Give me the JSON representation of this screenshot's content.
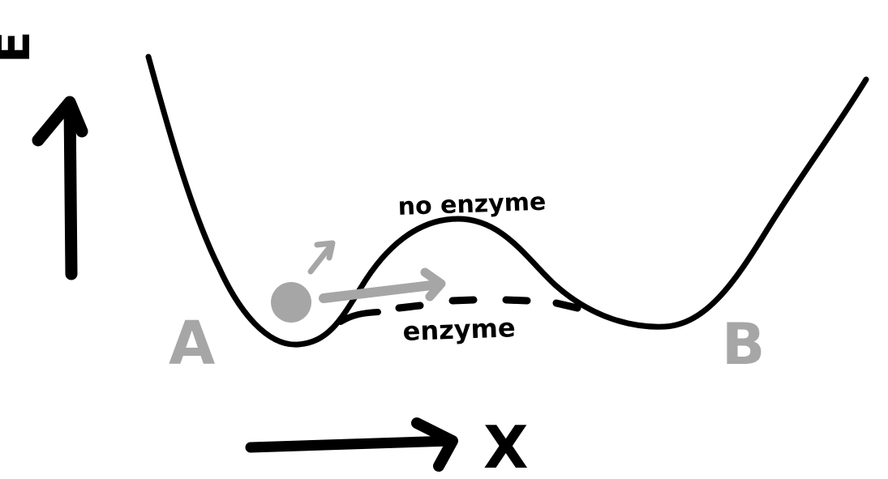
{
  "diagram": {
    "y_axis_label": "E",
    "x_axis_label": "X",
    "state_a_label": "A",
    "state_b_label": "B",
    "no_enzyme_label": "no enzyme",
    "enzyme_label": "enzyme"
  },
  "colors": {
    "ink": "#000000",
    "pencil_gray": "#a6a6a6",
    "background": "#ffffff"
  }
}
